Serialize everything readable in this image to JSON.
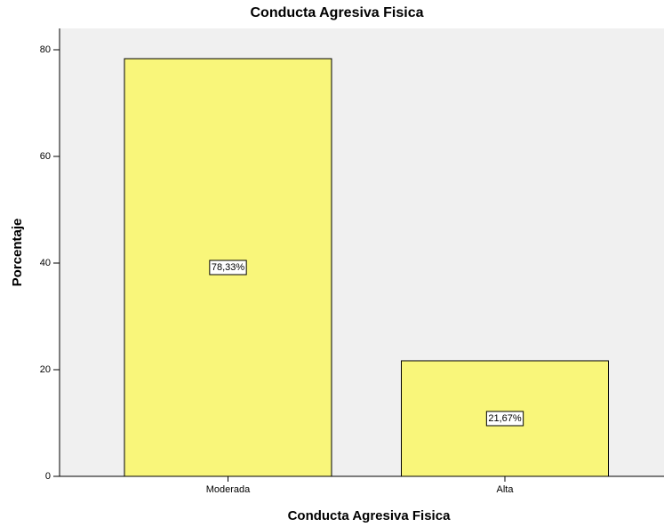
{
  "chart_data": {
    "type": "bar",
    "title": "Conducta Agresiva Fisica",
    "x_label": "Conducta Agresiva Fisica",
    "y_label": "Porcentaje",
    "categories": [
      "Moderada",
      "Alta"
    ],
    "values": [
      78.33,
      21.67
    ],
    "value_labels": [
      "78,33%",
      "21,67%"
    ],
    "color": "#f9f67a",
    "ylim": [
      0,
      84
    ],
    "yticks": [
      0,
      20,
      40,
      60,
      80
    ],
    "grid": false
  }
}
